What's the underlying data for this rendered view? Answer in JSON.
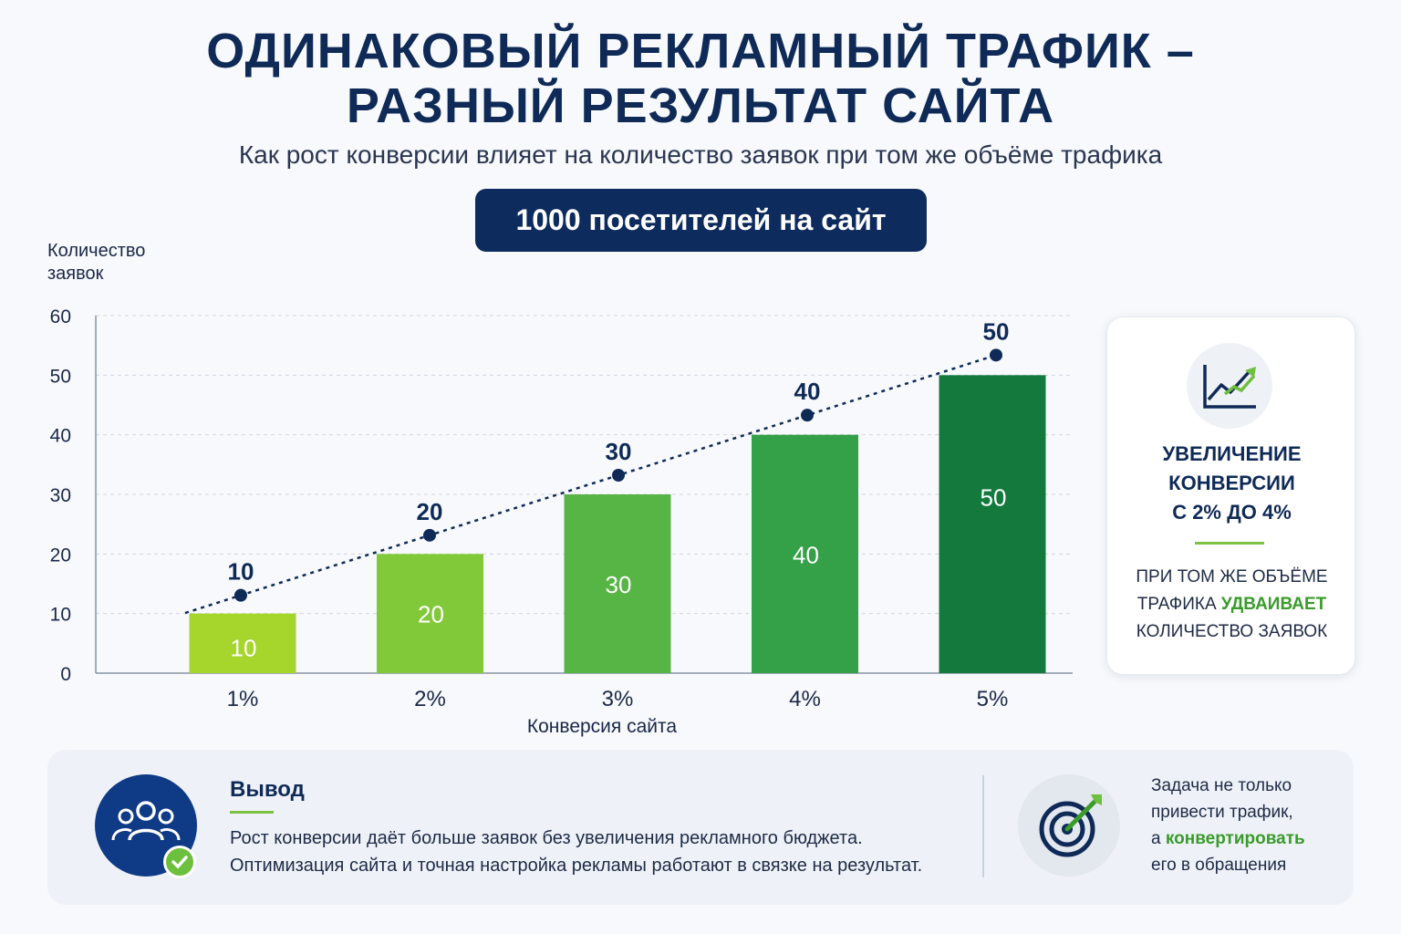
{
  "header": {
    "title_line1": "ОДИНАКОВЫЙ РЕКЛАМНЫЙ ТРАФИК –",
    "title_line2": "РАЗНЫЙ РЕЗУЛЬТАТ САЙТА",
    "subtitle": "Как рост конверсии влияет на количество заявок при том же объёме трафика",
    "pill": "1000 посетителей на сайт"
  },
  "chart_data": {
    "type": "bar",
    "categories": [
      "1%",
      "2%",
      "3%",
      "4%",
      "5%"
    ],
    "values": [
      10,
      20,
      30,
      40,
      50
    ],
    "ylabel": "Количество заявок",
    "xlabel": "Конверсия сайта",
    "ylim": [
      0,
      60
    ],
    "yticks": [
      0,
      10,
      20,
      30,
      40,
      50,
      60
    ],
    "grid": true,
    "trend_line": {
      "style": "dotted",
      "point_labels": [
        10,
        20,
        30,
        40,
        50
      ]
    },
    "bar_colors": [
      "#a6d52b",
      "#82c93a",
      "#56b544",
      "#34a047",
      "#13793c"
    ],
    "accent_color": "#0f2a57"
  },
  "side_card": {
    "icon": "rising-chart-icon",
    "heading": [
      "УВЕЛИЧЕНИЕ",
      "КОНВЕРСИИ",
      "С 2% ДО 4%"
    ],
    "text_line1": "ПРИ ТОМ ЖЕ ОБЪЁМЕ",
    "text_line2_pre": "ТРАФИКА ",
    "text_line2_highlight": "УДВАИВАЕТ",
    "text_line3": "КОЛИЧЕСТВО ЗАЯВОК"
  },
  "conclusion": {
    "icon": "team-check-icon",
    "heading": "Вывод",
    "line1": "Рост конверсии даёт больше заявок без увеличения рекламного бюджета.",
    "line2": "Оптимизация сайта и точная настройка рекламы работают в связке на результат."
  },
  "task": {
    "icon": "target-arrow-icon",
    "line1": "Задача не только",
    "line2": "привести трафик,",
    "line3_pre": "а ",
    "line3_highlight": "конвертировать",
    "line4": "его в обращения"
  }
}
